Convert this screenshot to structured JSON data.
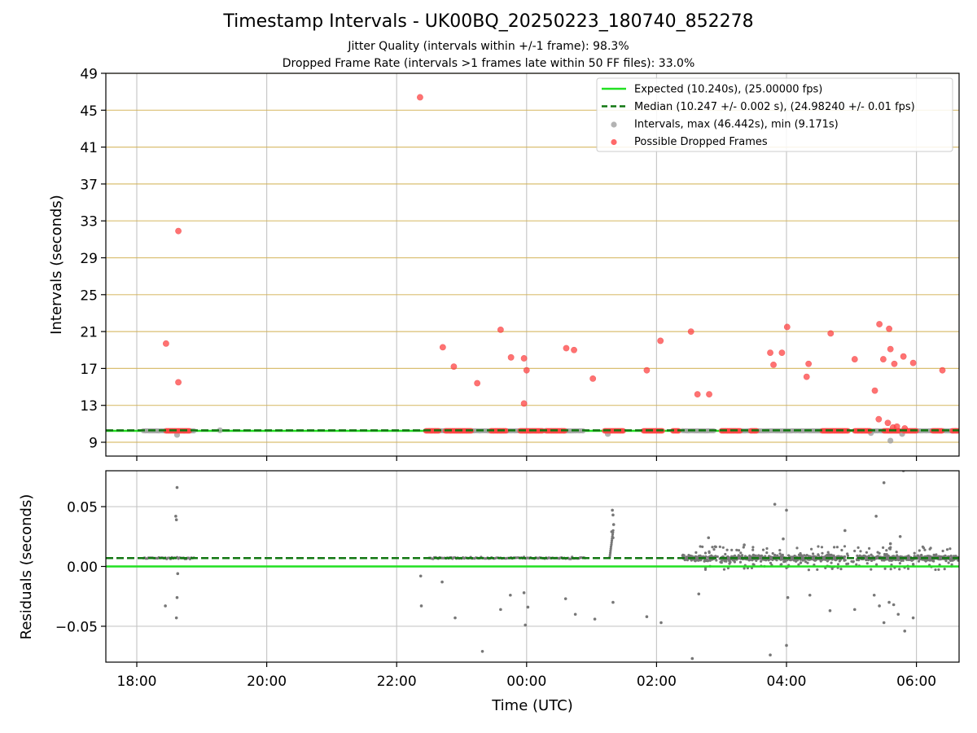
{
  "figure": {
    "title": "Timestamp Intervals - UK00BQ_20250223_180740_852278",
    "subtitle_1": "Jitter Quality (intervals within +/-1 frame): 98.3%",
    "subtitle_2": "Dropped Frame Rate (intervals >1 frames late within 50 FF files): 33.0%"
  },
  "chart_data": [
    {
      "type": "scatter",
      "panel": "top",
      "ylabel": "Intervals (seconds)",
      "xlabel": "",
      "x_unit": "hours since 18:00 UTC on the tick axis",
      "x_ticks": [
        "18:00",
        "20:00",
        "22:00",
        "00:00",
        "02:00",
        "04:00",
        "06:00"
      ],
      "ylim": [
        7.5,
        49
      ],
      "y_ticks": [
        9,
        13,
        17,
        21,
        25,
        29,
        33,
        37,
        41,
        45,
        49
      ],
      "horizontal_gridlines_color": "#d4b45a",
      "vertical_grid": true,
      "legend_position": "top-right",
      "colors": {
        "expected": "#22e022",
        "median": "#117711",
        "intervals": "#a0a0a0",
        "dropped": "#ff4444"
      },
      "legend": [
        {
          "label": "Expected (10.240s), (25.00000 fps)",
          "kind": "line",
          "color": "#22e022"
        },
        {
          "label": "Median (10.247 +/- 0.002 s), (24.98240 +/- 0.01 fps)",
          "kind": "dashed",
          "color": "#117711"
        },
        {
          "label": "Intervals, max (46.442s), min (9.171s)",
          "kind": "point",
          "color": "#a0a0a0"
        },
        {
          "label": "Possible Dropped Frames",
          "kind": "point",
          "color": "#ff4444"
        }
      ],
      "expected_value": 10.24,
      "median_value": 10.247,
      "interval_segments": [
        [
          0.1,
          0.9
        ],
        [
          4.5,
          6.9
        ],
        [
          8.4,
          8.9
        ],
        [
          9.0,
          10.9
        ],
        [
          11.1,
          12.9
        ],
        [
          13.0,
          13.4
        ]
      ],
      "dropped_frame_segments": [
        [
          0.45,
          0.82
        ],
        [
          4.45,
          4.65
        ],
        [
          4.75,
          5.15
        ],
        [
          5.45,
          5.7
        ],
        [
          5.9,
          6.25
        ],
        [
          6.3,
          6.6
        ],
        [
          7.2,
          7.5
        ],
        [
          7.8,
          8.1
        ],
        [
          8.25,
          8.35
        ],
        [
          9.0,
          9.3
        ],
        [
          9.45,
          9.55
        ],
        [
          10.55,
          10.95
        ],
        [
          11.05,
          11.3
        ],
        [
          11.5,
          11.75
        ],
        [
          11.8,
          12.0
        ],
        [
          12.25,
          12.4
        ],
        [
          12.55,
          12.65
        ],
        [
          12.7,
          12.8
        ],
        [
          12.85,
          13.05
        ],
        [
          13.15,
          13.45
        ]
      ],
      "dropped_frames": [
        {
          "x": 0.45,
          "y": 19.7
        },
        {
          "x": 0.64,
          "y": 31.9
        },
        {
          "x": 0.64,
          "y": 15.5
        },
        {
          "x": 4.36,
          "y": 46.4
        },
        {
          "x": 4.71,
          "y": 19.3
        },
        {
          "x": 4.88,
          "y": 17.2
        },
        {
          "x": 5.24,
          "y": 15.4
        },
        {
          "x": 5.6,
          "y": 21.2
        },
        {
          "x": 5.76,
          "y": 18.2
        },
        {
          "x": 5.96,
          "y": 18.1
        },
        {
          "x": 6.0,
          "y": 16.8
        },
        {
          "x": 5.96,
          "y": 13.2
        },
        {
          "x": 6.61,
          "y": 19.2
        },
        {
          "x": 6.73,
          "y": 19.0
        },
        {
          "x": 7.02,
          "y": 15.9
        },
        {
          "x": 7.85,
          "y": 16.8
        },
        {
          "x": 8.06,
          "y": 20.0
        },
        {
          "x": 8.53,
          "y": 21.0
        },
        {
          "x": 8.63,
          "y": 14.2
        },
        {
          "x": 8.81,
          "y": 14.2
        },
        {
          "x": 9.75,
          "y": 18.7
        },
        {
          "x": 9.8,
          "y": 17.4
        },
        {
          "x": 9.93,
          "y": 18.7
        },
        {
          "x": 10.01,
          "y": 21.5
        },
        {
          "x": 10.31,
          "y": 16.1
        },
        {
          "x": 10.34,
          "y": 17.5
        },
        {
          "x": 10.68,
          "y": 20.8
        },
        {
          "x": 11.05,
          "y": 18.0
        },
        {
          "x": 11.36,
          "y": 14.6
        },
        {
          "x": 11.43,
          "y": 21.8
        },
        {
          "x": 11.49,
          "y": 18.0
        },
        {
          "x": 11.58,
          "y": 21.3
        },
        {
          "x": 11.6,
          "y": 19.1
        },
        {
          "x": 11.66,
          "y": 17.5
        },
        {
          "x": 11.8,
          "y": 18.3
        },
        {
          "x": 11.95,
          "y": 17.6
        },
        {
          "x": 12.4,
          "y": 16.8
        },
        {
          "x": 11.42,
          "y": 11.5
        },
        {
          "x": 11.56,
          "y": 11.1
        },
        {
          "x": 11.64,
          "y": 10.6
        },
        {
          "x": 11.7,
          "y": 10.7
        },
        {
          "x": 11.82,
          "y": 10.5
        }
      ],
      "notable_intervals": [
        {
          "x": 0.62,
          "y": 9.8
        },
        {
          "x": 1.28,
          "y": 10.3
        },
        {
          "x": 7.25,
          "y": 9.9
        },
        {
          "x": 11.3,
          "y": 10.0
        },
        {
          "x": 11.6,
          "y": 9.17
        },
        {
          "x": 11.78,
          "y": 9.9
        }
      ]
    },
    {
      "type": "scatter",
      "panel": "bottom",
      "xlabel": "Time (UTC)",
      "ylabel": "Residuals (seconds)",
      "x_ticks": [
        "18:00",
        "20:00",
        "22:00",
        "00:00",
        "02:00",
        "04:00",
        "06:00"
      ],
      "ylim": [
        -0.08,
        0.08
      ],
      "y_ticks": [
        0.05,
        0.0,
        -0.05
      ],
      "y_tick_labels": [
        "0.05",
        "0.00",
        "−0.05"
      ],
      "grid": true,
      "expected_residual": 0.0,
      "median_residual": 0.007,
      "point_color": "#777777",
      "baseline_segments": [
        [
          0.1,
          0.9
        ],
        [
          4.5,
          6.9
        ],
        [
          8.4,
          8.9
        ],
        [
          9.0,
          10.9
        ],
        [
          11.1,
          12.9
        ],
        [
          13.0,
          13.4
        ]
      ],
      "dense_region": [
        8.5,
        13.4
      ],
      "outliers": [
        {
          "x": 0.44,
          "y": -0.033
        },
        {
          "x": 0.62,
          "y": 0.066
        },
        {
          "x": 0.6,
          "y": 0.042
        },
        {
          "x": 0.61,
          "y": 0.039
        },
        {
          "x": 0.63,
          "y": -0.006
        },
        {
          "x": 0.62,
          "y": -0.026
        },
        {
          "x": 0.61,
          "y": -0.043
        },
        {
          "x": 4.38,
          "y": -0.033
        },
        {
          "x": 4.37,
          "y": -0.008
        },
        {
          "x": 4.7,
          "y": -0.013
        },
        {
          "x": 4.9,
          "y": -0.043
        },
        {
          "x": 5.32,
          "y": -0.071
        },
        {
          "x": 5.6,
          "y": -0.036
        },
        {
          "x": 5.75,
          "y": -0.024
        },
        {
          "x": 5.96,
          "y": -0.022
        },
        {
          "x": 5.98,
          "y": -0.049
        },
        {
          "x": 6.02,
          "y": -0.034
        },
        {
          "x": 6.6,
          "y": -0.027
        },
        {
          "x": 6.75,
          "y": -0.04
        },
        {
          "x": 7.05,
          "y": -0.044
        },
        {
          "x": 7.32,
          "y": 0.047
        },
        {
          "x": 7.33,
          "y": 0.043
        },
        {
          "x": 7.34,
          "y": 0.035
        },
        {
          "x": 7.31,
          "y": 0.029
        },
        {
          "x": 7.33,
          "y": 0.024
        },
        {
          "x": 7.33,
          "y": -0.03
        },
        {
          "x": 7.85,
          "y": -0.042
        },
        {
          "x": 8.07,
          "y": -0.047
        },
        {
          "x": 8.55,
          "y": -0.077
        },
        {
          "x": 8.65,
          "y": -0.023
        },
        {
          "x": 8.8,
          "y": 0.024
        },
        {
          "x": 9.35,
          "y": 0.018
        },
        {
          "x": 9.75,
          "y": -0.074
        },
        {
          "x": 9.82,
          "y": 0.052
        },
        {
          "x": 9.95,
          "y": 0.023
        },
        {
          "x": 10.0,
          "y": 0.047
        },
        {
          "x": 10.02,
          "y": -0.026
        },
        {
          "x": 10.0,
          "y": -0.066
        },
        {
          "x": 10.36,
          "y": -0.024
        },
        {
          "x": 10.67,
          "y": -0.037
        },
        {
          "x": 10.9,
          "y": 0.03
        },
        {
          "x": 11.05,
          "y": -0.036
        },
        {
          "x": 11.38,
          "y": 0.042
        },
        {
          "x": 11.35,
          "y": -0.024
        },
        {
          "x": 11.43,
          "y": -0.033
        },
        {
          "x": 11.5,
          "y": 0.07
        },
        {
          "x": 11.5,
          "y": -0.047
        },
        {
          "x": 11.58,
          "y": -0.03
        },
        {
          "x": 11.65,
          "y": -0.032
        },
        {
          "x": 11.72,
          "y": -0.04
        },
        {
          "x": 11.8,
          "y": 0.08
        },
        {
          "x": 11.82,
          "y": -0.054
        },
        {
          "x": 11.95,
          "y": -0.043
        },
        {
          "x": 11.6,
          "y": 0.019
        },
        {
          "x": 11.75,
          "y": 0.025
        }
      ]
    }
  ]
}
